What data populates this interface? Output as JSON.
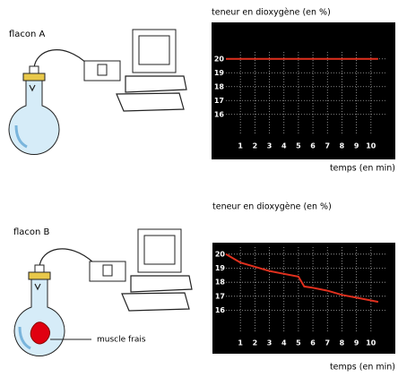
{
  "chart_data": [
    {
      "type": "line",
      "title": "teneur en dioxygène (en %)",
      "x_label": "temps (en min)",
      "x": [
        0,
        1,
        2,
        3,
        4,
        5,
        6,
        7,
        8,
        9,
        10,
        10.5
      ],
      "series": [
        {
          "name": null,
          "color": "#e0301e",
          "values": [
            20,
            20,
            20,
            20,
            20,
            20,
            20,
            20,
            20,
            20,
            20,
            20
          ]
        }
      ],
      "xlim": [
        0,
        11
      ],
      "xticks": [
        1,
        2,
        3,
        4,
        5,
        6,
        7,
        8,
        9,
        10
      ],
      "ylim": [
        14.5,
        20.5
      ],
      "yticks": [
        16,
        17,
        18,
        19,
        20
      ],
      "grid": true
    },
    {
      "type": "line",
      "title": "teneur en dioxygène (en %)",
      "x_label": "temps (en min)",
      "x": [
        0,
        1,
        2,
        3,
        4,
        5,
        5.4,
        6,
        7,
        8,
        9,
        10,
        10.5
      ],
      "series": [
        {
          "name": null,
          "color": "#e0301e",
          "values": [
            20,
            19.4,
            19.1,
            18.8,
            18.6,
            18.4,
            17.7,
            17.6,
            17.4,
            17.1,
            16.9,
            16.7,
            16.6
          ]
        }
      ],
      "xlim": [
        0,
        11
      ],
      "xticks": [
        1,
        2,
        3,
        4,
        5,
        6,
        7,
        8,
        9,
        10
      ],
      "ylim": [
        14.5,
        20.5
      ],
      "yticks": [
        16,
        17,
        18,
        19,
        20
      ],
      "grid": true
    }
  ],
  "illustrations": [
    {
      "label": "flacon A"
    },
    {
      "label": "flacon B",
      "annotation": "muscle frais"
    }
  ]
}
